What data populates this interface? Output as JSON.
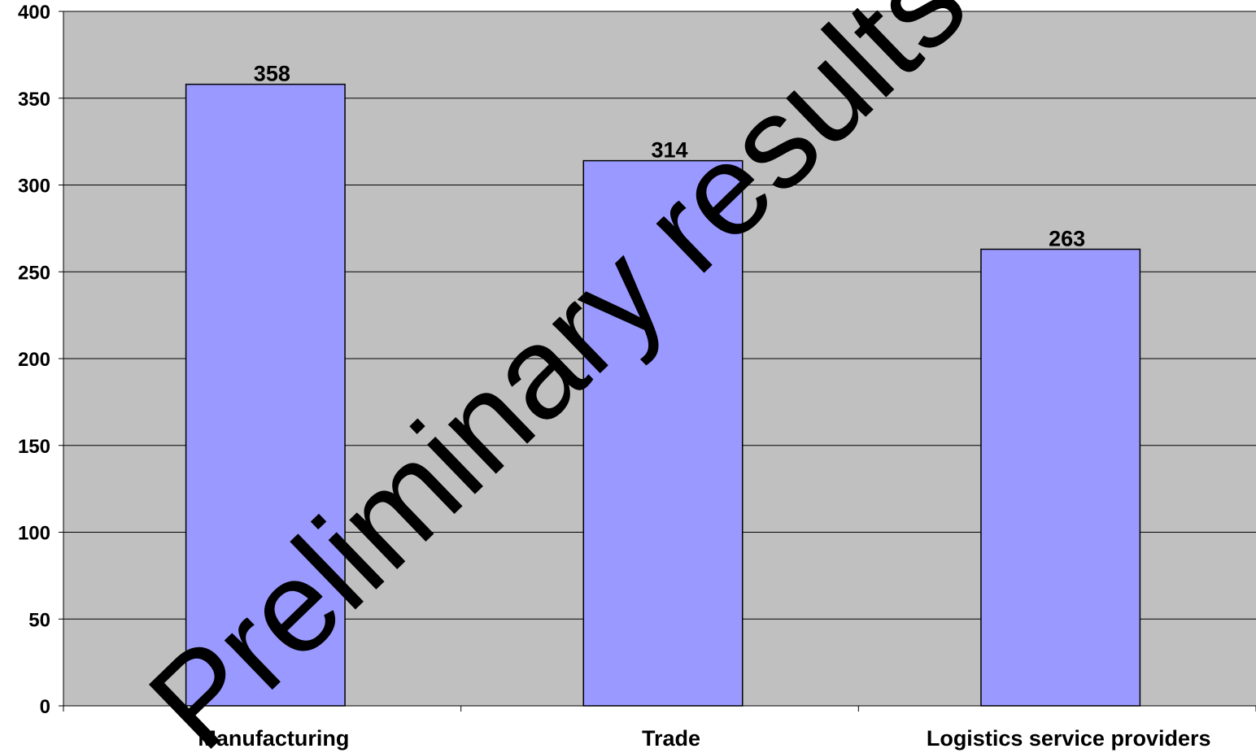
{
  "chart_data": {
    "type": "bar",
    "categories": [
      "Manufacturing",
      "Trade",
      "Logistics service providers"
    ],
    "values": [
      358,
      314,
      263
    ],
    "color": "#9999ff",
    "ylim": [
      0,
      400
    ],
    "yticks": [
      0,
      50,
      100,
      150,
      200,
      250,
      300,
      350,
      400
    ],
    "grid": true,
    "annotation": "Preliminary results"
  }
}
